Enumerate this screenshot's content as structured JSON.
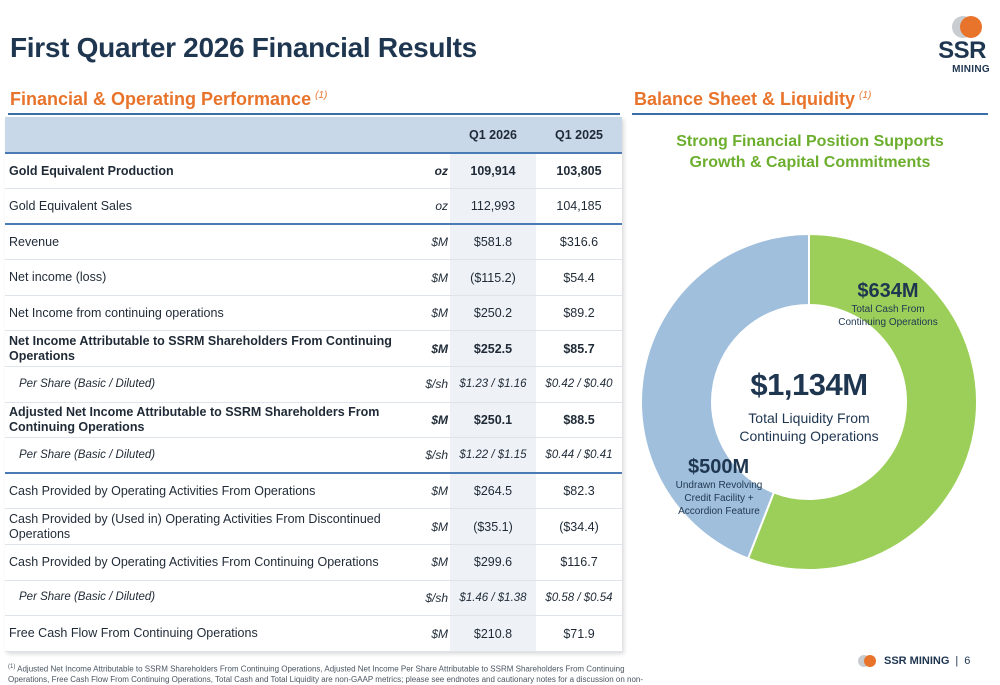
{
  "page": {
    "title": "First Quarter 2026 Financial Results",
    "footnote_marker": "(1)",
    "footnote": "Adjusted Net Income Attributable to SSRM Shareholders From Continuing Operations, Adjusted Net Income Per Share Attributable to SSRM Shareholders From Continuing Operations, Free Cash Flow From Continuing Operations, Total Cash and Total Liquidity are non-GAAP metrics; please see endnotes and cautionary notes for a discussion on non-GAAP metrics",
    "footer_company": "SSR MINING",
    "footer_separator": "|",
    "page_number": "6"
  },
  "logo": {
    "line1": "SSR",
    "line2": "MINING"
  },
  "left_section": {
    "title": "Financial & Operating Performance",
    "marker": "(1)"
  },
  "right_section": {
    "title": "Balance Sheet & Liquidity",
    "marker": "(1)",
    "subtitle": "Strong Financial Position Supports Growth & Capital Commitments"
  },
  "table": {
    "columns": [
      "",
      "",
      "Q1 2026",
      "Q1 2025"
    ],
    "rows": [
      {
        "label": "Gold Equivalent Production",
        "unit": "oz",
        "q1_2026": "109,914",
        "q1_2025": "103,805",
        "style": "bold"
      },
      {
        "label": "Gold Equivalent Sales",
        "unit": "oz",
        "q1_2026": "112,993",
        "q1_2025": "104,185",
        "style": "sep"
      },
      {
        "label": "Revenue",
        "unit": "$M",
        "q1_2026": "$581.8",
        "q1_2025": "$316.6",
        "style": ""
      },
      {
        "label": "Net income (loss)",
        "unit": "$M",
        "q1_2026": "($115.2)",
        "q1_2025": "$54.4",
        "style": ""
      },
      {
        "label": "Net Income from continuing operations",
        "unit": "$M",
        "q1_2026": "$250.2",
        "q1_2025": "$89.2",
        "style": ""
      },
      {
        "label": "Net Income Attributable to SSRM Shareholders From Continuing Operations",
        "unit": "$M",
        "q1_2026": "$252.5",
        "q1_2025": "$85.7",
        "style": "bold"
      },
      {
        "label": "Per Share (Basic / Diluted)",
        "unit": "$/sh",
        "q1_2026": "$1.23 / $1.16",
        "q1_2025": "$0.42 / $0.40",
        "style": "ps"
      },
      {
        "label": "Adjusted Net Income Attributable to SSRM Shareholders From Continuing Operations",
        "unit": "$M",
        "q1_2026": "$250.1",
        "q1_2025": "$88.5",
        "style": "bold"
      },
      {
        "label": "Per Share (Basic / Diluted)",
        "unit": "$/sh",
        "q1_2026": "$1.22 / $1.15",
        "q1_2025": "$0.44 / $0.41",
        "style": "ps sep"
      },
      {
        "label": "Cash Provided by Operating Activities From Operations",
        "unit": "$M",
        "q1_2026": "$264.5",
        "q1_2025": "$82.3",
        "style": ""
      },
      {
        "label": "Cash Provided by (Used in) Operating Activities From Discontinued Operations",
        "unit": "$M",
        "q1_2026": "($35.1)",
        "q1_2025": "($34.4)",
        "style": ""
      },
      {
        "label": "Cash Provided by Operating Activities From Continuing Operations",
        "unit": "$M",
        "q1_2026": "$299.6",
        "q1_2025": "$116.7",
        "style": ""
      },
      {
        "label": "Per Share (Basic / Diluted)",
        "unit": "$/sh",
        "q1_2026": "$1.46 / $1.38",
        "q1_2025": "$0.58 / $0.54",
        "style": "ps"
      },
      {
        "label": "Free Cash Flow From Continuing Operations",
        "unit": "$M",
        "q1_2026": "$210.8",
        "q1_2025": "$71.9",
        "style": ""
      }
    ]
  },
  "chart_data": {
    "type": "pie",
    "donut": true,
    "center_value": "$1,134M",
    "center_label": "Total Liquidity From Continuing Operations",
    "slices": [
      {
        "name": "Total Cash From Continuing Operations",
        "value": 634,
        "label": "$634M",
        "color": "#9ccf5a"
      },
      {
        "name": "Undrawn Revolving Credit Facility + Accordion Feature",
        "value": 500,
        "label": "$500M",
        "color": "#9fbfdc"
      }
    ]
  }
}
